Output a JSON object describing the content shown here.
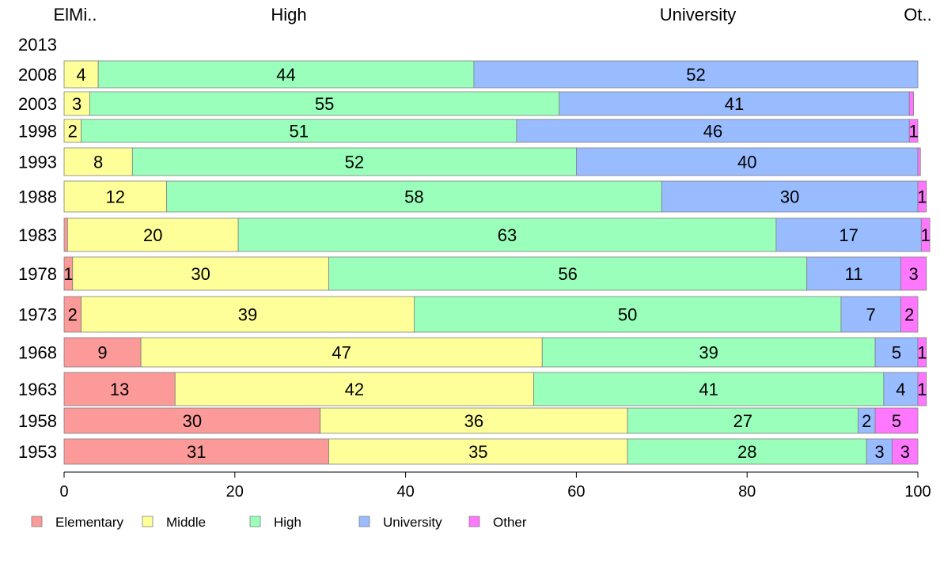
{
  "chart_data": {
    "type": "bar",
    "orientation": "horizontal",
    "stacked": true,
    "title": "",
    "xlabel": "",
    "ylabel": "",
    "xlim": [
      0,
      100
    ],
    "x_ticks": [
      "0",
      "20",
      "40",
      "60",
      "80",
      "100"
    ],
    "top_labels": [
      "ElMi..",
      "High",
      "University",
      "Ot.."
    ],
    "categories": [
      "2013",
      "2008",
      "2003",
      "1998",
      "1993",
      "1988",
      "1983",
      "1978",
      "1973",
      "1968",
      "1963",
      "1958",
      "1953"
    ],
    "series": [
      {
        "name": "Elementary",
        "color": "#fb9a99",
        "values": [
          0,
          0,
          0,
          0,
          0,
          0,
          0.4,
          1,
          2,
          9,
          13,
          30,
          31
        ]
      },
      {
        "name": "Middle",
        "color": "#ffff99",
        "values": [
          0,
          4,
          3,
          2,
          8,
          12,
          20,
          30,
          39,
          47,
          42,
          36,
          35
        ]
      },
      {
        "name": "High",
        "color": "#99ffbb",
        "values": [
          0,
          44,
          55,
          51,
          52,
          58,
          63,
          56,
          50,
          39,
          41,
          27,
          28
        ]
      },
      {
        "name": "University",
        "color": "#99bbff",
        "values": [
          0,
          52,
          41,
          46,
          40,
          30,
          17,
          11,
          7,
          5,
          4,
          2,
          3
        ]
      },
      {
        "name": "Other",
        "color": "#ff77ff",
        "values": [
          0,
          0,
          0.5,
          1,
          0.3,
          1,
          1,
          3,
          2,
          1,
          1,
          5,
          3
        ]
      }
    ],
    "data_labels": [
      [],
      [
        "",
        "4",
        "44",
        "52",
        ""
      ],
      [
        "",
        "3",
        "55",
        "41",
        ""
      ],
      [
        "",
        "2",
        "51",
        "46",
        "1"
      ],
      [
        "",
        "8",
        "52",
        "40",
        ""
      ],
      [
        "",
        "12",
        "58",
        "30",
        "1"
      ],
      [
        "",
        "20",
        "63",
        "17",
        "1"
      ],
      [
        "1",
        "30",
        "56",
        "11",
        "3"
      ],
      [
        "2",
        "39",
        "50",
        "7",
        "2"
      ],
      [
        "9",
        "47",
        "39",
        "5",
        "1"
      ],
      [
        "13",
        "42",
        "41",
        "4",
        "1"
      ],
      [
        "30",
        "36",
        "27",
        "2",
        "5"
      ],
      [
        "31",
        "35",
        "28",
        "3",
        "3"
      ]
    ],
    "legend": {
      "position": "bottom-left",
      "items": [
        "Elementary",
        "Middle",
        "High",
        "University",
        "Other"
      ]
    },
    "grid": false
  }
}
